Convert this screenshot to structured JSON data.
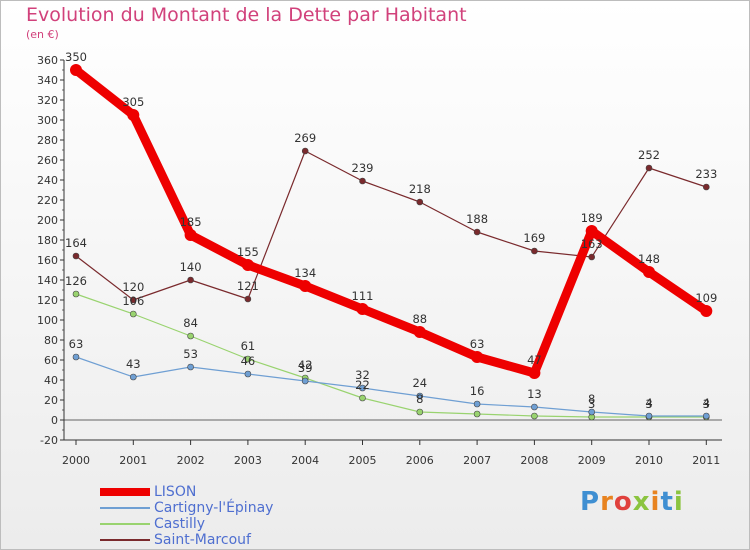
{
  "header": {
    "title": "Evolution du Montant de la Dette par Habitant",
    "subtitle": "(en €)"
  },
  "logo": {
    "text": "Proxiti",
    "letter_colors": [
      "#3f8fd2",
      "#e8831f",
      "#e0413d",
      "#8bc43f",
      "#e8831f",
      "#3f8fd2",
      "#8bc43f"
    ]
  },
  "chart_data": {
    "type": "line",
    "title": "Evolution du Montant de la Dette par Habitant",
    "subtitle": "(en €)",
    "xlabel": "",
    "ylabel": "",
    "x": [
      "2000",
      "2001",
      "2002",
      "2003",
      "2004",
      "2005",
      "2006",
      "2007",
      "2008",
      "2009",
      "2010",
      "2011"
    ],
    "ylim": [
      -20,
      360
    ],
    "yticks": [
      -20,
      0,
      20,
      40,
      60,
      80,
      100,
      120,
      140,
      160,
      180,
      200,
      220,
      240,
      260,
      280,
      300,
      320,
      340,
      360
    ],
    "grid": false,
    "legend_position": "bottom-left",
    "series": [
      {
        "name": "LISON",
        "color": "#ee0000",
        "values": [
          350,
          305,
          185,
          155,
          134,
          111,
          88,
          63,
          47,
          189,
          148,
          109
        ],
        "labels": [
          "350",
          "305",
          "185",
          "155",
          "134",
          "111",
          "88",
          "63",
          "47",
          "189",
          "148",
          "109"
        ]
      },
      {
        "name": "Cartigny-l'Épinay",
        "color": "#6f9fd3",
        "values": [
          63,
          43,
          53,
          46,
          39,
          32,
          24,
          16,
          13,
          8,
          4,
          4
        ],
        "labels": [
          "63",
          "43",
          "53",
          "46",
          "39",
          "32",
          "24",
          "16",
          "13",
          "8",
          "4",
          "4"
        ]
      },
      {
        "name": "Castilly",
        "color": "#99d36f",
        "values": [
          126,
          106,
          84,
          61,
          42,
          22,
          8,
          6,
          4,
          3,
          3,
          3
        ],
        "labels": [
          "126",
          "106",
          "84",
          "61",
          "42",
          "22",
          "8",
          "",
          "",
          "3",
          "3",
          "3"
        ]
      },
      {
        "name": "Saint-Marcouf",
        "color": "#7a2a2d",
        "values": [
          164,
          120,
          140,
          121,
          269,
          239,
          218,
          188,
          169,
          163,
          252,
          233
        ],
        "labels": [
          "164",
          "120",
          "140",
          "121",
          "269",
          "239",
          "218",
          "188",
          "169",
          "163",
          "252",
          "233"
        ]
      }
    ]
  }
}
